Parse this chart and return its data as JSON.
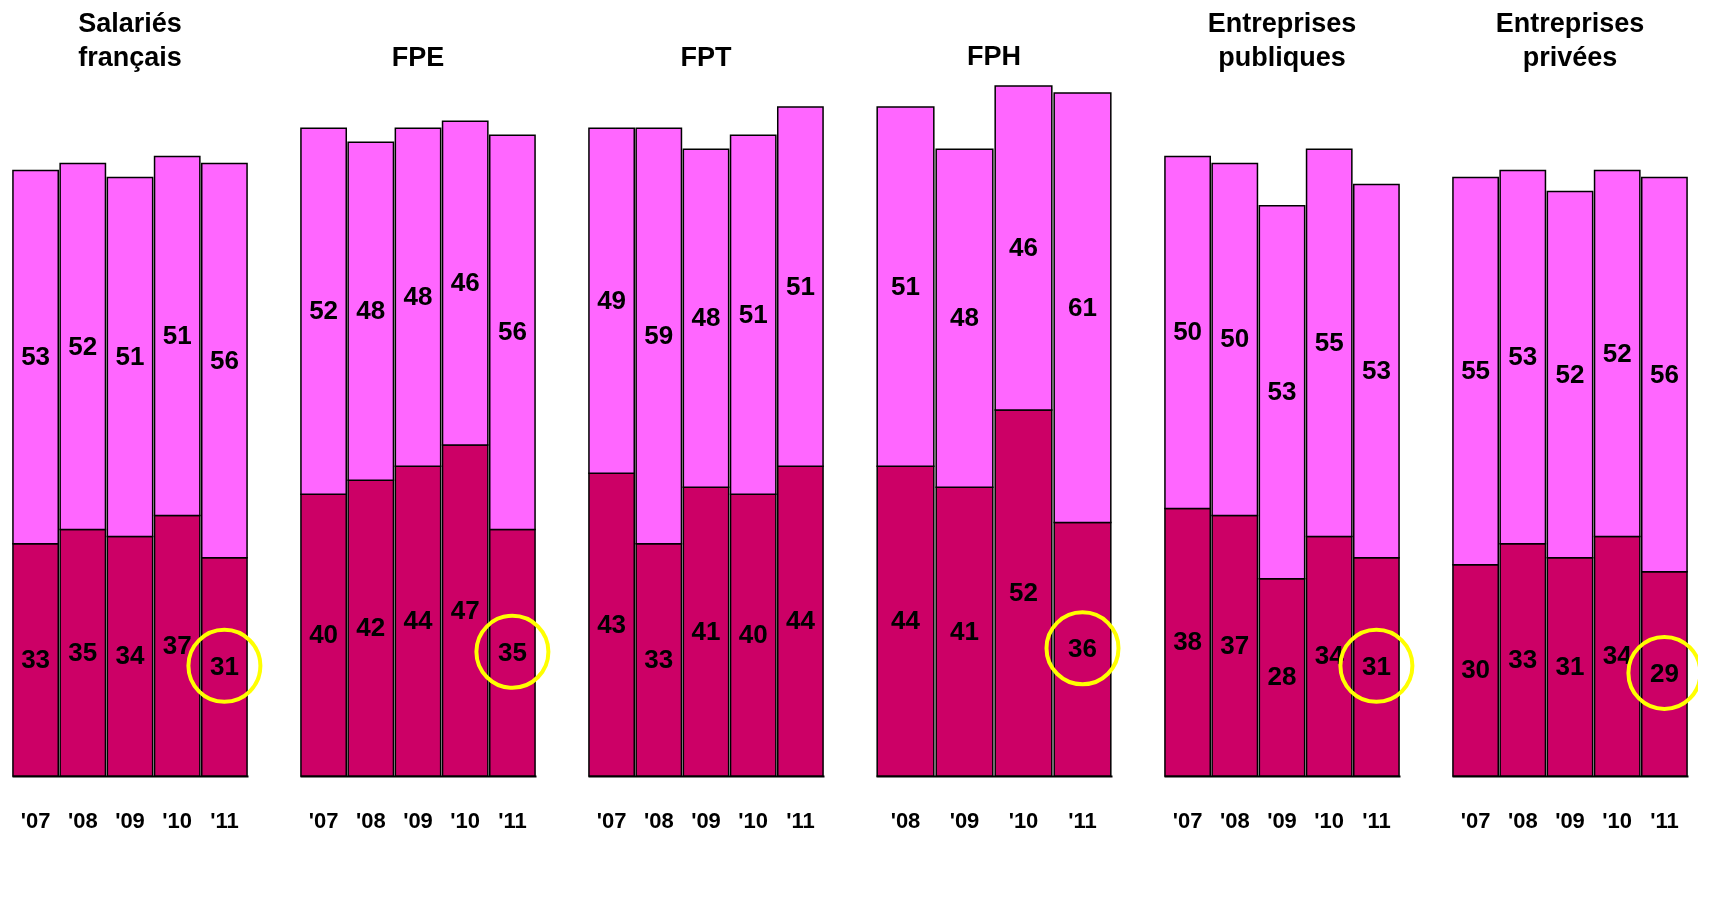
{
  "chart_data": [
    {
      "type": "bar",
      "stacked": true,
      "data_labels": true,
      "title": "Salariés français",
      "categories": [
        "'07",
        "'08",
        "'09",
        "'10",
        "'11"
      ],
      "series": [
        {
          "color": "#cc0066",
          "values": [
            33,
            35,
            34,
            37,
            31
          ]
        },
        {
          "color": "#ff66ff",
          "values": [
            53,
            52,
            51,
            51,
            56
          ]
        }
      ]
    },
    {
      "type": "bar",
      "stacked": true,
      "data_labels": true,
      "title": "FPE",
      "categories": [
        "'07",
        "'08",
        "'09",
        "'10",
        "'11"
      ],
      "series": [
        {
          "color": "#cc0066",
          "values": [
            40,
            42,
            44,
            47,
            35
          ]
        },
        {
          "color": "#ff66ff",
          "values": [
            52,
            48,
            48,
            46,
            56
          ]
        }
      ]
    },
    {
      "type": "bar",
      "stacked": true,
      "data_labels": true,
      "title": "FPT",
      "categories": [
        "'07",
        "'08",
        "'09",
        "'10",
        "'11"
      ],
      "series": [
        {
          "color": "#cc0066",
          "values": [
            43,
            33,
            41,
            40,
            44
          ]
        },
        {
          "color": "#ff66ff",
          "values": [
            49,
            59,
            48,
            51,
            51
          ]
        }
      ]
    },
    {
      "type": "bar",
      "stacked": true,
      "data_labels": true,
      "title": "FPH",
      "categories": [
        "'08",
        "'09",
        "'10",
        "'11"
      ],
      "series": [
        {
          "color": "#cc0066",
          "values": [
            44,
            41,
            52,
            36
          ]
        },
        {
          "color": "#ff66ff",
          "values": [
            51,
            48,
            46,
            61
          ]
        }
      ]
    },
    {
      "type": "bar",
      "stacked": true,
      "data_labels": true,
      "title": "Entreprises publiques",
      "categories": [
        "'07",
        "'08",
        "'09",
        "'10",
        "'11"
      ],
      "series": [
        {
          "color": "#cc0066",
          "values": [
            38,
            37,
            28,
            34,
            31
          ]
        },
        {
          "color": "#ff66ff",
          "values": [
            50,
            50,
            53,
            55,
            53
          ]
        }
      ]
    },
    {
      "type": "bar",
      "stacked": true,
      "data_labels": true,
      "title": "Entreprises privées",
      "categories": [
        "'07",
        "'08",
        "'09",
        "'10",
        "'11"
      ],
      "series": [
        {
          "color": "#cc0066",
          "values": [
            30,
            33,
            31,
            34,
            29
          ]
        },
        {
          "color": "#ff66ff",
          "values": [
            55,
            53,
            52,
            52,
            56
          ]
        }
      ]
    }
  ]
}
